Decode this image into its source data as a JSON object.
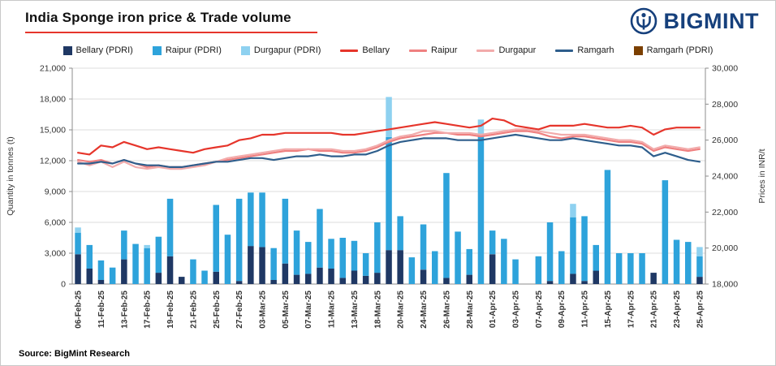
{
  "header": {
    "title": "India Sponge iron price & Trade volume",
    "brand": "BIGMINT"
  },
  "source": "Source: BigMint Research",
  "colors": {
    "accent": "#e6352b",
    "brand": "#16407c",
    "axis_text": "#333333",
    "gridline": "#dedede"
  },
  "chart_data": {
    "type": "combo-stacked-bar-line",
    "title": "India Sponge iron price & Trade volume",
    "left_axis": {
      "label": "Quantity in tonnes (t)",
      "min": 0,
      "max": 21000,
      "step": 3000
    },
    "right_axis": {
      "label": "Prices in INR/t",
      "min": 18000,
      "max": 30000,
      "step": 2000
    },
    "legend": [
      {
        "label": "Bellary (PDRI)",
        "type": "bar",
        "color": "#1f3864"
      },
      {
        "label": "Raipur (PDRI)",
        "type": "bar",
        "color": "#2ea3db"
      },
      {
        "label": "Durgapur (PDRI)",
        "type": "bar",
        "color": "#8ed1f0"
      },
      {
        "label": "Bellary",
        "type": "line",
        "color": "#e6352b"
      },
      {
        "label": "Raipur",
        "type": "line",
        "color": "#ef8080"
      },
      {
        "label": "Durgapur",
        "type": "line",
        "color": "#f2abab"
      },
      {
        "label": "Ramgarh",
        "type": "line",
        "color": "#2e5e8c"
      },
      {
        "label": "Ramgarh (PDRI)",
        "type": "bar",
        "color": "#7b3f00"
      }
    ],
    "x_labels": [
      "06-Feb-25",
      "",
      "11-Feb-25",
      "",
      "13-Feb-25",
      "",
      "17-Feb-25",
      "",
      "19-Feb-25",
      "",
      "21-Feb-25",
      "",
      "25-Feb-25",
      "",
      "27-Feb-25",
      "",
      "03-Mar-25",
      "",
      "05-Mar-25",
      "",
      "07-Mar-25",
      "",
      "11-Mar-25",
      "",
      "13-Mar-25",
      "",
      "18-Mar-25",
      "",
      "20-Mar-25",
      "",
      "24-Mar-25",
      "",
      "26-Mar-25",
      "",
      "28-Mar-25",
      "",
      "01-Apr-25",
      "",
      "03-Apr-25",
      "",
      "07-Apr-25",
      "",
      "09-Apr-25",
      "",
      "11-Apr-25",
      "",
      "15-Apr-25",
      "",
      "17-Apr-25",
      "",
      "21-Apr-25",
      "",
      "23-Apr-25",
      "",
      "25-Apr-25"
    ],
    "bar_series": [
      {
        "name": "Bellary (PDRI)",
        "color": "#1f3864",
        "values": [
          2900,
          1500,
          400,
          0,
          2400,
          0,
          0,
          1100,
          2700,
          700,
          0,
          0,
          1200,
          0,
          300,
          3700,
          3600,
          400,
          2000,
          900,
          1000,
          1600,
          1500,
          600,
          1300,
          800,
          1100,
          3300,
          3300,
          0,
          1400,
          0,
          600,
          0,
          900,
          0,
          2900,
          0,
          0,
          0,
          0,
          300,
          0,
          1000,
          300,
          1300,
          0,
          0,
          0,
          0,
          1100,
          0,
          0,
          0,
          700
        ]
      },
      {
        "name": "Raipur (PDRI)",
        "color": "#2ea3db",
        "values": [
          2100,
          2300,
          1900,
          1600,
          2800,
          3900,
          3500,
          3500,
          5600,
          0,
          2400,
          1300,
          6500,
          4800,
          8000,
          5200,
          5300,
          3100,
          6300,
          4300,
          3100,
          5700,
          2900,
          3900,
          2900,
          2200,
          4900,
          11000,
          3300,
          2600,
          4400,
          3200,
          10200,
          5100,
          2500,
          14600,
          2300,
          4400,
          2400,
          0,
          2700,
          5700,
          3200,
          5500,
          6300,
          2500,
          11100,
          3000,
          3000,
          3000,
          0,
          10100,
          4300,
          4100,
          2000
        ]
      },
      {
        "name": "Durgapur (PDRI)",
        "color": "#8ed1f0",
        "values": [
          500,
          0,
          0,
          0,
          0,
          0,
          300,
          0,
          0,
          0,
          0,
          0,
          0,
          0,
          0,
          0,
          0,
          0,
          0,
          0,
          0,
          0,
          0,
          0,
          0,
          0,
          0,
          3900,
          0,
          0,
          0,
          0,
          0,
          0,
          0,
          1400,
          0,
          0,
          0,
          0,
          0,
          0,
          0,
          1300,
          0,
          0,
          0,
          0,
          0,
          0,
          0,
          0,
          0,
          0,
          900
        ]
      },
      {
        "name": "Ramgarh (PDRI)",
        "color": "#7b3f00",
        "values": [
          0,
          0,
          0,
          0,
          0,
          0,
          0,
          0,
          0,
          0,
          0,
          0,
          0,
          0,
          0,
          0,
          0,
          0,
          0,
          0,
          0,
          0,
          0,
          0,
          0,
          0,
          0,
          0,
          0,
          0,
          0,
          0,
          0,
          0,
          0,
          0,
          0,
          0,
          0,
          0,
          0,
          0,
          0,
          0,
          0,
          0,
          0,
          0,
          0,
          0,
          0,
          0,
          0,
          0,
          0
        ]
      }
    ],
    "line_series": [
      {
        "name": "Bellary",
        "color": "#e6352b",
        "values": [
          25300,
          25200,
          25700,
          25600,
          25900,
          25700,
          25500,
          25600,
          25500,
          25400,
          25300,
          25500,
          25600,
          25700,
          26000,
          26100,
          26300,
          26300,
          26400,
          26400,
          26400,
          26400,
          26400,
          26300,
          26300,
          26400,
          26500,
          26600,
          26700,
          26800,
          26900,
          27000,
          26900,
          26800,
          26700,
          26800,
          27200,
          27100,
          26800,
          26700,
          26600,
          26800,
          26800,
          26800,
          26900,
          26800,
          26700,
          26700,
          26800,
          26700,
          26300,
          26600,
          26700,
          26700,
          26700
        ]
      },
      {
        "name": "Raipur",
        "color": "#ef8080",
        "values": [
          24900,
          24800,
          24900,
          24700,
          24900,
          24700,
          24500,
          24600,
          24500,
          24500,
          24600,
          24700,
          24800,
          24900,
          25000,
          25100,
          25200,
          25300,
          25400,
          25400,
          25500,
          25400,
          25400,
          25300,
          25300,
          25400,
          25600,
          25900,
          26100,
          26200,
          26300,
          26400,
          26400,
          26300,
          26300,
          26200,
          26300,
          26400,
          26500,
          26500,
          26400,
          26200,
          26100,
          26200,
          26200,
          26100,
          26000,
          25900,
          25900,
          25800,
          25400,
          25600,
          25500,
          25400,
          25500
        ]
      },
      {
        "name": "Durgapur",
        "color": "#f2abab",
        "values": [
          24800,
          24600,
          24800,
          24500,
          24800,
          24500,
          24400,
          24500,
          24400,
          24400,
          24500,
          24600,
          24800,
          25000,
          25100,
          25200,
          25300,
          25400,
          25500,
          25500,
          25500,
          25500,
          25500,
          25400,
          25400,
          25500,
          25700,
          26000,
          26200,
          26300,
          26500,
          26500,
          26400,
          26400,
          26400,
          26300,
          26400,
          26500,
          26600,
          26600,
          26500,
          26400,
          26300,
          26300,
          26300,
          26200,
          26100,
          26000,
          26000,
          25900,
          25500,
          25700,
          25600,
          25500,
          25600
        ]
      },
      {
        "name": "Ramgarh",
        "color": "#2e5e8c",
        "values": [
          24700,
          24700,
          24800,
          24700,
          24900,
          24700,
          24600,
          24600,
          24500,
          24500,
          24600,
          24700,
          24800,
          24800,
          24900,
          25000,
          25000,
          24900,
          25000,
          25100,
          25100,
          25200,
          25100,
          25100,
          25200,
          25200,
          25400,
          25700,
          25900,
          26000,
          26100,
          26100,
          26100,
          26000,
          26000,
          26000,
          26100,
          26200,
          26300,
          26200,
          26100,
          26000,
          26000,
          26100,
          26000,
          25900,
          25800,
          25700,
          25700,
          25600,
          25100,
          25300,
          25100,
          24900,
          24800
        ]
      }
    ]
  }
}
